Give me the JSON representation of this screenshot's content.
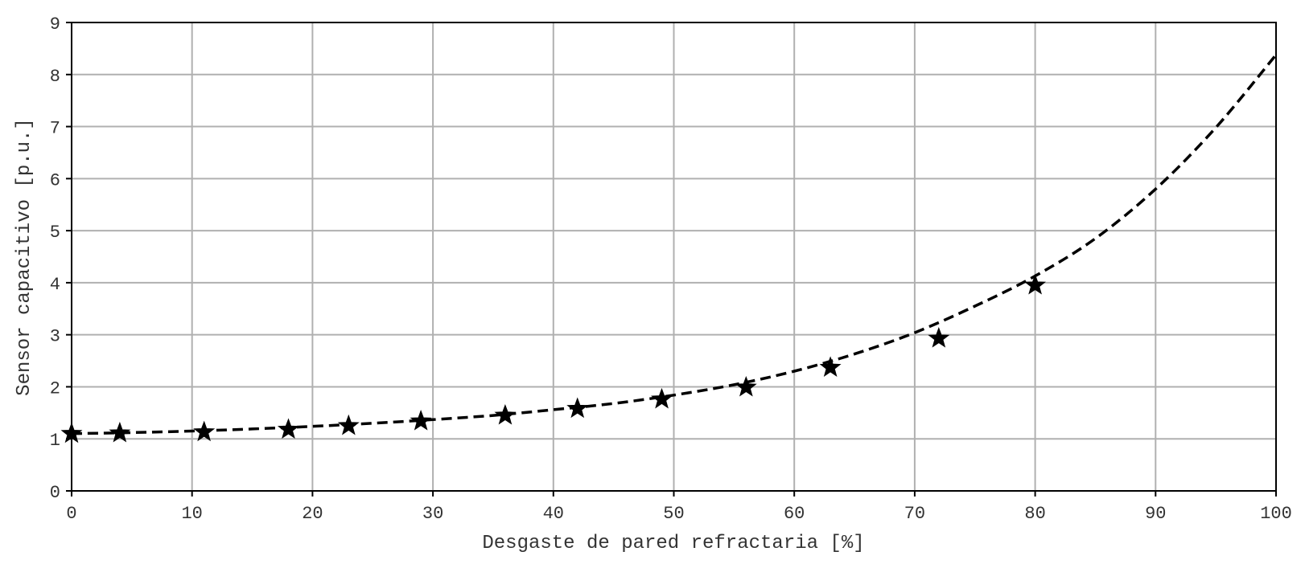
{
  "chart_data": {
    "type": "scatter",
    "title": "",
    "xlabel": "Desgaste de pared refractaria [%]",
    "ylabel": "Sensor capacitivo [p.u.]",
    "xlim": [
      0,
      100
    ],
    "ylim": [
      0,
      9
    ],
    "x_ticks": [
      "0",
      "10",
      "20",
      "30",
      "40",
      "50",
      "60",
      "70",
      "80",
      "90",
      "100"
    ],
    "y_ticks": [
      "0",
      "1",
      "2",
      "3",
      "4",
      "5",
      "6",
      "7",
      "8",
      "9"
    ],
    "grid": true,
    "legend": "none",
    "series": [
      {
        "marker": "star",
        "color": "#000000",
        "points": [
          {
            "x": 0,
            "y": 1.1
          },
          {
            "x": 4,
            "y": 1.11
          },
          {
            "x": 11,
            "y": 1.13
          },
          {
            "x": 18,
            "y": 1.18
          },
          {
            "x": 23,
            "y": 1.25
          },
          {
            "x": 29,
            "y": 1.34
          },
          {
            "x": 36,
            "y": 1.45
          },
          {
            "x": 42,
            "y": 1.58
          },
          {
            "x": 49,
            "y": 1.76
          },
          {
            "x": 56,
            "y": 1.99
          },
          {
            "x": 63,
            "y": 2.37
          },
          {
            "x": 72,
            "y": 2.93
          },
          {
            "x": 80,
            "y": 3.95
          }
        ]
      },
      {
        "line_style": "dashed",
        "color": "#000000",
        "points": [
          {
            "x": 0,
            "y": 1.1
          },
          {
            "x": 5,
            "y": 1.12
          },
          {
            "x": 10,
            "y": 1.15
          },
          {
            "x": 15,
            "y": 1.19
          },
          {
            "x": 20,
            "y": 1.24
          },
          {
            "x": 25,
            "y": 1.3
          },
          {
            "x": 30,
            "y": 1.37
          },
          {
            "x": 35,
            "y": 1.45
          },
          {
            "x": 40,
            "y": 1.56
          },
          {
            "x": 45,
            "y": 1.68
          },
          {
            "x": 50,
            "y": 1.84
          },
          {
            "x": 55,
            "y": 2.04
          },
          {
            "x": 60,
            "y": 2.3
          },
          {
            "x": 65,
            "y": 2.63
          },
          {
            "x": 70,
            "y": 3.04
          },
          {
            "x": 75,
            "y": 3.55
          },
          {
            "x": 80,
            "y": 4.13
          },
          {
            "x": 85,
            "y": 4.85
          },
          {
            "x": 90,
            "y": 5.8
          },
          {
            "x": 95,
            "y": 6.98
          },
          {
            "x": 100,
            "y": 8.38
          }
        ]
      }
    ]
  }
}
